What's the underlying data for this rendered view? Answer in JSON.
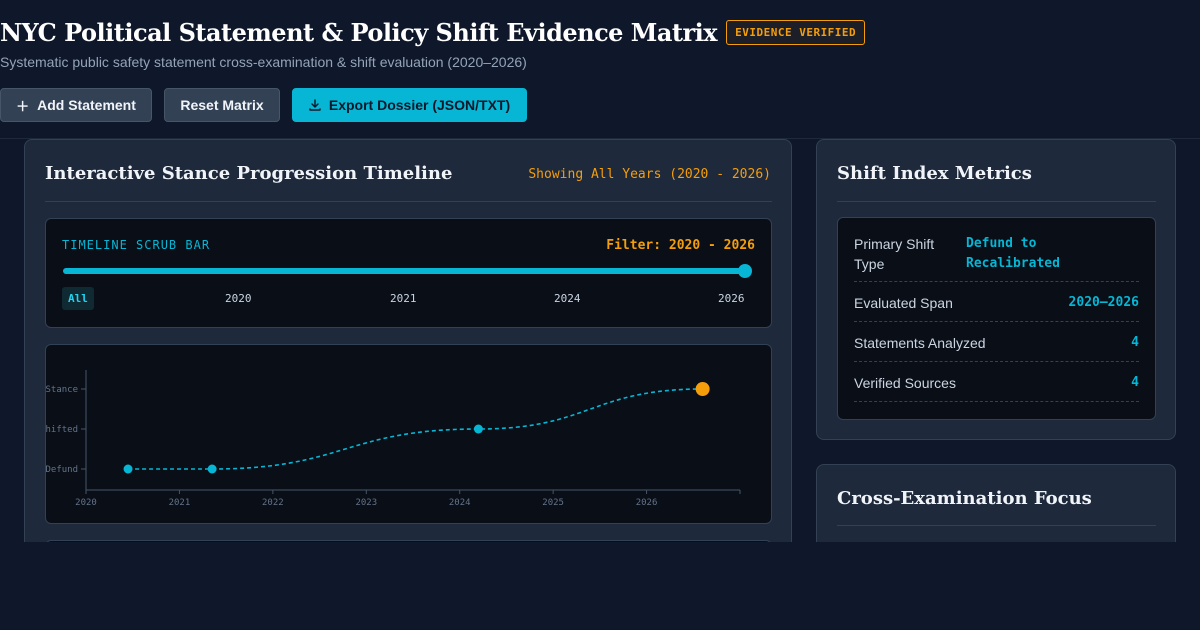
{
  "header": {
    "title": "NYC Political Statement & Policy Shift Evidence Matrix",
    "badge": "EVIDENCE VERIFIED",
    "subtitle": "Systematic public safety statement cross-examination & shift evaluation (2020–2026)"
  },
  "toolbar": {
    "add_label": "Add Statement",
    "reset_label": "Reset Matrix",
    "export_label": "Export Dossier (JSON/TXT)"
  },
  "timeline": {
    "title": "Interactive Stance Progression Timeline",
    "showing": "Showing All Years (2020 - 2026)",
    "scrub_label": "TIMELINE SCRUB BAR",
    "scrub_filter": "Filter: 2020 - 2026",
    "scrub_value": 1.0,
    "years": [
      "All",
      "2020",
      "2021",
      "2024",
      "2026"
    ],
    "active_year": "All"
  },
  "chart_data": {
    "type": "line",
    "x_ticks": [
      "2020",
      "2021",
      "2022",
      "2023",
      "2024",
      "2025",
      "2026"
    ],
    "y_ticks": [
      "Defund",
      "Shifted",
      "Stance"
    ],
    "xlim": [
      2020,
      2027
    ],
    "points": [
      {
        "x": 2020.45,
        "y": 0
      },
      {
        "x": 2021.35,
        "y": 0
      },
      {
        "x": 2024.2,
        "y": 1
      },
      {
        "x": 2026.6,
        "y": 2
      }
    ],
    "highlight_last": true,
    "colors": {
      "line": "#06b6d4",
      "highlight": "#f59e0b",
      "axis": "#475569",
      "tick": "#64748b"
    }
  },
  "metrics": {
    "title": "Shift Index Metrics",
    "rows": [
      {
        "label": "Primary Shift Type",
        "value": "Defund to Recalibrated"
      },
      {
        "label": "Evaluated Span",
        "value": "2020–2026"
      },
      {
        "label": "Statements Analyzed",
        "value": "4"
      },
      {
        "label": "Verified Sources",
        "value": "4"
      }
    ]
  },
  "cross": {
    "title": "Cross-Examination Focus"
  }
}
